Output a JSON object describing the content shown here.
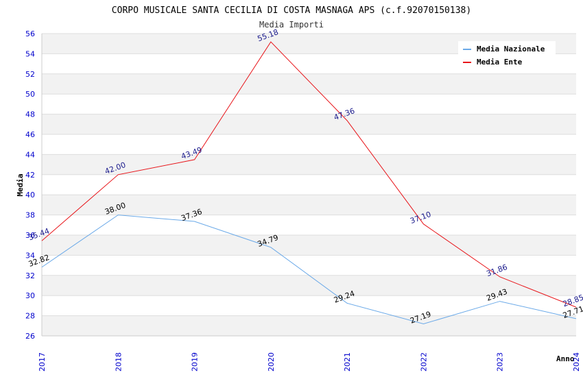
{
  "chart_data": {
    "type": "line",
    "title": "CORPO MUSICALE SANTA CECILIA DI COSTA MASNAGA APS (c.f.92070150138)",
    "subtitle": "Media Importi",
    "xlabel": "Anno",
    "ylabel": "Media",
    "ylim": [
      26,
      56
    ],
    "yticks": [
      "26",
      "28",
      "30",
      "32",
      "34",
      "36",
      "38",
      "40",
      "42",
      "44",
      "46",
      "48",
      "50",
      "52",
      "54",
      "56"
    ],
    "categories": [
      "2017",
      "2018",
      "2019",
      "2020",
      "2021",
      "2022",
      "2023",
      "2024"
    ],
    "grid": "horizontal alternating bands",
    "legend_position": "top-right",
    "series": [
      {
        "name": "Media Nazionale",
        "color": "#6aa9e8",
        "label_color": "#000000",
        "values": [
          32.82,
          38.0,
          37.36,
          34.79,
          29.24,
          27.19,
          29.43,
          27.71
        ],
        "labels": [
          "32.82",
          "38.00",
          "37.36",
          "34.79",
          "29.24",
          "27.19",
          "29.43",
          "27.71"
        ]
      },
      {
        "name": "Media Ente",
        "color": "#e8161b",
        "label_color": "#1a1a8c",
        "values": [
          35.44,
          42.0,
          43.49,
          55.18,
          47.36,
          37.1,
          31.86,
          28.85
        ],
        "labels": [
          "35.44",
          "42.00",
          "43.49",
          "55.18",
          "47.36",
          "37.10",
          "31.86",
          "28.85"
        ]
      }
    ]
  }
}
